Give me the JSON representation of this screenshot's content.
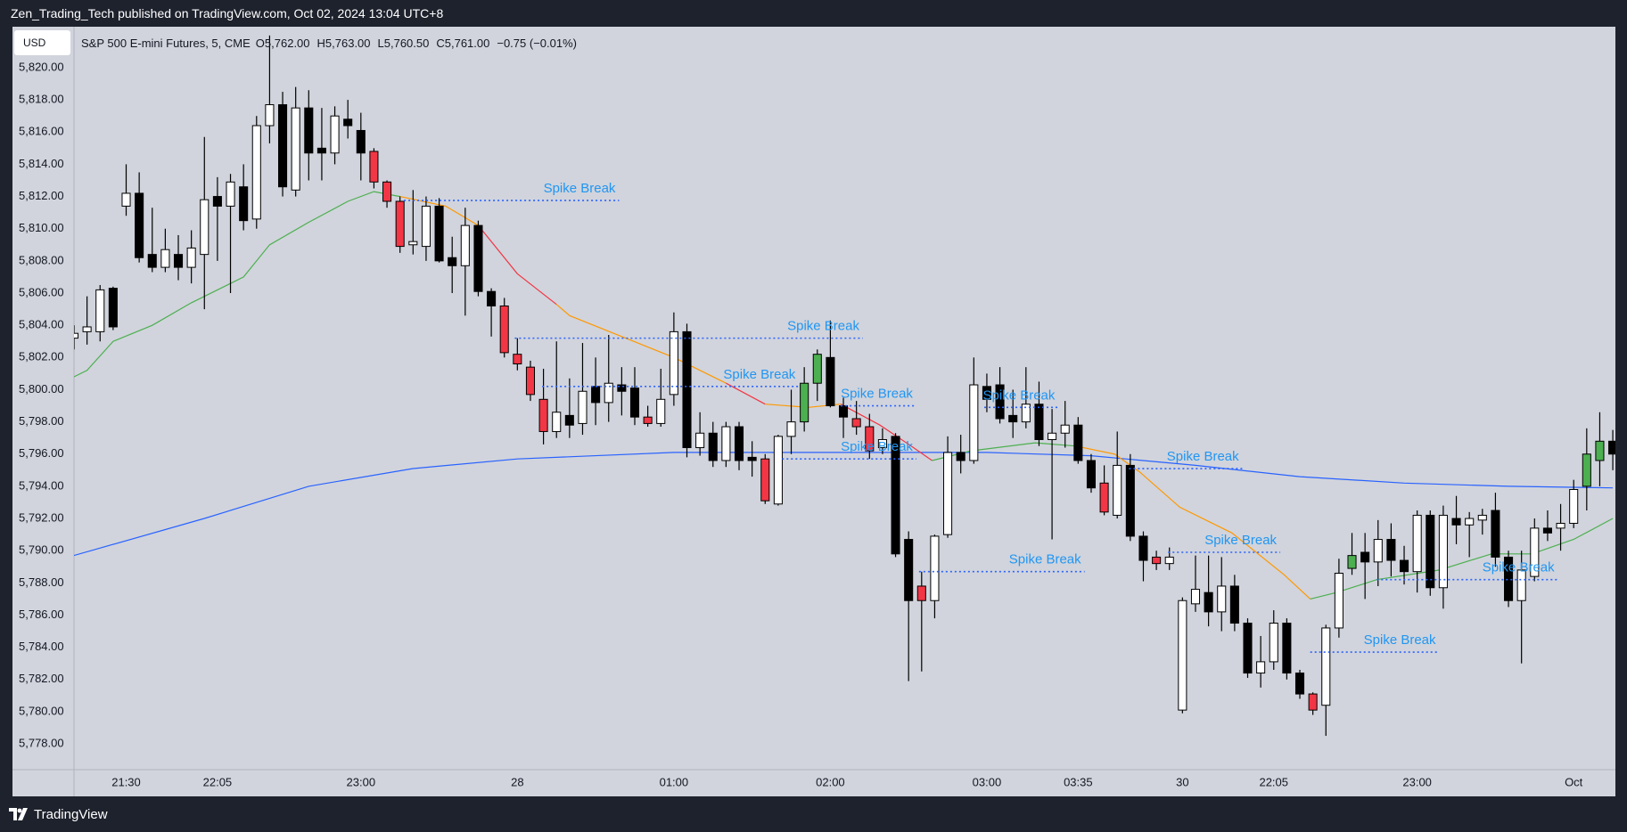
{
  "header": {
    "publisher": "Zen_Trading_Tech published on TradingView.com, Oct 02, 2024 13:04 UTC+8"
  },
  "footer": {
    "brand": "TradingView"
  },
  "chart_data": {
    "type": "candlestick",
    "currency": "USD",
    "symbol": "S&P 500 E-mini Futures, 5, CME",
    "ohlc_legend": [
      {
        "label": "O",
        "text": "5,762.00"
      },
      {
        "label": "H",
        "text": "5,763.00"
      },
      {
        "label": "L",
        "text": "5,760.50"
      },
      {
        "label": "C",
        "text": "5,761.00"
      },
      {
        "label": "",
        "text": "−0.75 (−0.01%)"
      }
    ],
    "categories": [
      null,
      null,
      null,
      null,
      "21:30",
      null,
      null,
      null,
      null,
      null,
      null,
      "22:05",
      null,
      null,
      null,
      null,
      null,
      null,
      null,
      null,
      null,
      null,
      "23:00",
      null,
      null,
      null,
      null,
      null,
      null,
      null,
      null,
      null,
      null,
      null,
      "28",
      null,
      null,
      null,
      null,
      null,
      null,
      null,
      null,
      null,
      null,
      null,
      "01:00",
      null,
      null,
      null,
      null,
      null,
      null,
      null,
      null,
      null,
      null,
      null,
      "02:00",
      null,
      null,
      null,
      null,
      null,
      null,
      null,
      null,
      null,
      null,
      null,
      "03:00",
      null,
      null,
      null,
      null,
      null,
      null,
      "03:35",
      null,
      null,
      null,
      null,
      null,
      null,
      null,
      "30",
      null,
      null,
      null,
      null,
      null,
      null,
      "22:05",
      null,
      null,
      null,
      null,
      null,
      null,
      null,
      null,
      null,
      null,
      "23:00",
      null,
      null,
      null,
      null,
      null,
      null,
      null,
      null,
      null,
      null,
      null,
      "Oct",
      null,
      null,
      null
    ],
    "open": [
      5803.5,
      5803.6,
      5803.6,
      5806.3,
      5811.4,
      5812.2,
      5808.4,
      5807.6,
      5808.4,
      5807.6,
      5808.4,
      5812,
      5811.4,
      5812.6,
      5810.6,
      5816.4,
      5817.7,
      5812.4,
      5817.5,
      5815,
      5814.7,
      5816.8,
      5816.1,
      5814.8,
      5812.9,
      5811.7,
      5809,
      5808.9,
      5811.4,
      5808.2,
      5807.7,
      5810.2,
      5806.1,
      5805.2,
      5802.2,
      5801.4,
      5799.4,
      5797.4,
      5798.4,
      5797.9,
      5800.2,
      5799.2,
      5800.3,
      5800.1,
      5798.3,
      5797.9,
      5799.7,
      5803.6,
      5796.4,
      5797.3,
      5795.6,
      5797.7,
      5795.8,
      5795.7,
      5792.9,
      5797.1,
      5798,
      5800.4,
      5802,
      5799,
      5798.2,
      5797.7,
      5796.4,
      5797.1,
      5790.7,
      5787.8,
      5786.9,
      5791,
      5796.1,
      5795.6,
      5800.2,
      5800.3,
      5798.4,
      5798,
      5799.1,
      5796.9,
      5797.3,
      5797.8,
      5795.6,
      5794.2,
      5792.2,
      5795.3,
      5790.9,
      5789.6,
      5789.2,
      5780.1,
      5786.7,
      5787.4,
      5786.2,
      5787.8,
      5785.5,
      5782.4,
      5783.1,
      5785.5,
      5782.4,
      5781.1,
      5780.4,
      5785.2,
      5788.9,
      5789.9,
      5789.3,
      5790.7,
      5789.4,
      5788.7,
      5792.2,
      5787.7,
      5792,
      5791.6,
      5791.9,
      5792.5,
      5789.6,
      5786.9,
      5788.4,
      5791.4,
      5791.4,
      5791.7,
      5794,
      5795.6,
      5796.8
    ],
    "high": [
      5804,
      5805.8,
      5806.5,
      5806.4,
      5814,
      5813.5,
      5811.3,
      5810,
      5809.6,
      5809.9,
      5815.7,
      5813.2,
      5813.4,
      5814,
      5817,
      5822,
      5818.5,
      5818.8,
      5818.6,
      5817.5,
      5817.6,
      5818,
      5817.2,
      5815,
      5813,
      5812,
      5812.4,
      5812,
      5811.9,
      5809.5,
      5811.3,
      5810.5,
      5806.3,
      5805.7,
      5803.2,
      5801.8,
      5801.3,
      5803,
      5800.7,
      5802.9,
      5802,
      5803.4,
      5801.4,
      5801.4,
      5799,
      5801.3,
      5804.8,
      5804.1,
      5798.6,
      5798,
      5798,
      5798,
      5796.8,
      5796,
      5797.2,
      5800,
      5801.4,
      5802.5,
      5804.3,
      5799.5,
      5799.3,
      5798.5,
      5797.6,
      5797.3,
      5791.2,
      5788.7,
      5791,
      5797.1,
      5797.2,
      5802,
      5801,
      5801.4,
      5800,
      5801.4,
      5800.5,
      5798.8,
      5799.3,
      5798.3,
      5796,
      5795.3,
      5797.4,
      5796,
      5791.2,
      5790,
      5790.2,
      5787.1,
      5789.7,
      5789.7,
      5789.6,
      5788.5,
      5785.8,
      5784.7,
      5786.3,
      5785.8,
      5782.6,
      5781.2,
      5785.4,
      5789.5,
      5791.1,
      5791.1,
      5791.9,
      5791.7,
      5790.3,
      5792.5,
      5792.5,
      5792.8,
      5793.4,
      5792.4,
      5792.6,
      5793.6,
      5790,
      5790,
      5792,
      5792.5,
      5792.9,
      5794.4,
      5797.6,
      5798.6,
      5797.5
    ],
    "low": [
      5802.5,
      5802.8,
      5803,
      5803.7,
      5810.8,
      5807.9,
      5807.3,
      5807.3,
      5806.8,
      5806.6,
      5805,
      5808,
      5806,
      5809.9,
      5810,
      5815.3,
      5812,
      5812,
      5813,
      5813,
      5814,
      5815.6,
      5813,
      5812.5,
      5811.3,
      5808.5,
      5808.4,
      5808,
      5807.9,
      5806,
      5804.6,
      5805.8,
      5803.3,
      5802,
      5801.2,
      5799.3,
      5796.6,
      5797,
      5797,
      5797.2,
      5797.8,
      5798,
      5798.4,
      5797.8,
      5797.7,
      5797.7,
      5799,
      5795.8,
      5795.9,
      5795.2,
      5795.2,
      5795,
      5794.6,
      5792.9,
      5792.8,
      5796,
      5797.4,
      5799.3,
      5798.9,
      5797,
      5797.2,
      5795.7,
      5796,
      5789.6,
      5781.9,
      5782.5,
      5785.8,
      5790.8,
      5794.8,
      5795.4,
      5798.6,
      5797.9,
      5797,
      5797.6,
      5796.5,
      5790.7,
      5796.4,
      5795.4,
      5793.6,
      5792.2,
      5792,
      5790.6,
      5788.1,
      5788.8,
      5788.8,
      5779.9,
      5786.2,
      5785.3,
      5785,
      5785,
      5782.1,
      5781.5,
      5782.6,
      5782,
      5780.8,
      5779.8,
      5778.5,
      5784.6,
      5788.5,
      5787,
      5787.8,
      5788.4,
      5787.9,
      5787.4,
      5787.2,
      5786.4,
      5790.4,
      5789.6,
      5791,
      5789,
      5786.5,
      5783,
      5788.1,
      5790.6,
      5790,
      5791.4,
      5792.5,
      5794,
      5795
    ],
    "close": [
      5803.2,
      5803.9,
      5806.2,
      5803.9,
      5812.2,
      5808.2,
      5807.6,
      5808.7,
      5807.6,
      5808.8,
      5811.8,
      5811.4,
      5812.9,
      5810.5,
      5816.4,
      5817.7,
      5812.6,
      5817.5,
      5814.7,
      5814.7,
      5817,
      5816.4,
      5814.7,
      5812.9,
      5811.7,
      5808.9,
      5809.2,
      5811.4,
      5808,
      5807.7,
      5810.2,
      5806.1,
      5805.2,
      5802.3,
      5801.6,
      5799.7,
      5797.4,
      5798.6,
      5797.8,
      5799.9,
      5799.2,
      5800.4,
      5799.9,
      5798.3,
      5797.9,
      5799.4,
      5803.6,
      5796.4,
      5797.3,
      5795.6,
      5797.7,
      5795.6,
      5795.6,
      5793.1,
      5797.1,
      5798,
      5800.4,
      5802.2,
      5799,
      5798.3,
      5797.7,
      5796.2,
      5796.9,
      5789.8,
      5786.9,
      5786.9,
      5790.9,
      5796.1,
      5795.6,
      5800.3,
      5799.4,
      5798.2,
      5798,
      5799.1,
      5796.9,
      5797.3,
      5797.8,
      5795.6,
      5793.9,
      5792.4,
      5795.3,
      5790.9,
      5789.4,
      5789.2,
      5789.6,
      5786.9,
      5787.6,
      5786.2,
      5787.8,
      5785.5,
      5782.4,
      5783.1,
      5785.5,
      5782.4,
      5781.1,
      5780.1,
      5785.2,
      5788.6,
      5789.7,
      5789.3,
      5790.7,
      5789.4,
      5788.7,
      5792.2,
      5787.7,
      5792.2,
      5791.6,
      5792,
      5792.2,
      5789.6,
      5786.9,
      5788.8,
      5791.4,
      5791.1,
      5791.7,
      5793.8,
      5796,
      5796.8,
      5796
    ],
    "colors": [
      "#ffffff",
      "#ffffff",
      "#ffffff",
      "#000000",
      "#ffffff",
      "#000000",
      "#000000",
      "#ffffff",
      "#000000",
      "#ffffff",
      "#ffffff",
      "#000000",
      "#ffffff",
      "#000000",
      "#ffffff",
      "#ffffff",
      "#000000",
      "#ffffff",
      "#000000",
      "#000000",
      "#ffffff",
      "#000000",
      "#000000",
      "#f23645",
      "#f23645",
      "#f23645",
      "#ffffff",
      "#ffffff",
      "#000000",
      "#000000",
      "#ffffff",
      "#000000",
      "#000000",
      "#f23645",
      "#f23645",
      "#f23645",
      "#f23645",
      "#ffffff",
      "#000000",
      "#ffffff",
      "#000000",
      "#ffffff",
      "#000000",
      "#000000",
      "#f23645",
      "#ffffff",
      "#ffffff",
      "#000000",
      "#ffffff",
      "#000000",
      "#ffffff",
      "#000000",
      "#000000",
      "#f23645",
      "#ffffff",
      "#ffffff",
      "#4caf50",
      "#4caf50",
      "#000000",
      "#000000",
      "#f23645",
      "#f23645",
      "#ffffff",
      "#000000",
      "#000000",
      "#f23645",
      "#ffffff",
      "#ffffff",
      "#000000",
      "#ffffff",
      "#000000",
      "#000000",
      "#000000",
      "#ffffff",
      "#000000",
      "#ffffff",
      "#ffffff",
      "#000000",
      "#000000",
      "#f23645",
      "#ffffff",
      "#000000",
      "#000000",
      "#f23645",
      "#ffffff",
      "#ffffff",
      "#ffffff",
      "#000000",
      "#ffffff",
      "#000000",
      "#000000",
      "#ffffff",
      "#ffffff",
      "#000000",
      "#000000",
      "#f23645",
      "#ffffff",
      "#ffffff",
      "#4caf50",
      "#000000",
      "#ffffff",
      "#000000",
      "#000000",
      "#ffffff",
      "#000000",
      "#ffffff",
      "#000000",
      "#ffffff",
      "#ffffff",
      "#000000",
      "#000000",
      "#ffffff",
      "#ffffff",
      "#000000",
      "#ffffff",
      "#ffffff",
      "#4caf50",
      "#4caf50",
      "#000000"
    ],
    "xlim": [
      0,
      118.2
    ],
    "ylim": [
      5776.4,
      5822.4
    ],
    "yticks": [
      {
        "value": 5778,
        "label": "5,778.00"
      },
      {
        "value": 5780,
        "label": "5,780.00"
      },
      {
        "value": 5782,
        "label": "5,782.00"
      },
      {
        "value": 5784,
        "label": "5,784.00"
      },
      {
        "value": 5786,
        "label": "5,786.00"
      },
      {
        "value": 5788,
        "label": "5,788.00"
      },
      {
        "value": 5790,
        "label": "5,790.00"
      },
      {
        "value": 5792,
        "label": "5,792.00"
      },
      {
        "value": 5794,
        "label": "5,794.00"
      },
      {
        "value": 5796,
        "label": "5,796.00"
      },
      {
        "value": 5798,
        "label": "5,798.00"
      },
      {
        "value": 5800,
        "label": "5,800.00"
      },
      {
        "value": 5802,
        "label": "5,802.00"
      },
      {
        "value": 5804,
        "label": "5,804.00"
      },
      {
        "value": 5806,
        "label": "5,806.00"
      },
      {
        "value": 5808,
        "label": "5,808.00"
      },
      {
        "value": 5810,
        "label": "5,810.00"
      },
      {
        "value": 5812,
        "label": "5,812.00"
      },
      {
        "value": 5814,
        "label": "5,814.00"
      },
      {
        "value": 5816,
        "label": "5,816.00"
      },
      {
        "value": 5818,
        "label": "5,818.00"
      },
      {
        "value": 5820,
        "label": "5,820.00"
      }
    ],
    "grid": false,
    "lines": [
      {
        "color": "#2962ff",
        "x": [
          0,
          10,
          18,
          26,
          34,
          46,
          58,
          70,
          78,
          86,
          94,
          102,
          110,
          118
        ],
        "values": [
          5789.7,
          5792,
          5794,
          5795.1,
          5795.7,
          5796.1,
          5796.1,
          5796.1,
          5795.9,
          5795.3,
          5794.6,
          5794.2,
          5794,
          5793.9
        ]
      },
      {
        "color": "#4caf50",
        "x": [
          0,
          1,
          3,
          6,
          9,
          13,
          15,
          18,
          21,
          23,
          25
        ],
        "values": [
          5800.8,
          5801.2,
          5803,
          5804,
          5805.4,
          5807,
          5809,
          5810.4,
          5811.7,
          5812.3,
          5812
        ]
      },
      {
        "color": "#ff9800",
        "x": [
          25,
          28.5,
          31
        ],
        "values": [
          5812,
          5811.4,
          5810.2
        ]
      },
      {
        "color": "#f23645",
        "x": [
          31,
          34,
          37
        ],
        "values": [
          5810.2,
          5807.2,
          5805.3
        ]
      },
      {
        "color": "#ff9800",
        "x": [
          37,
          38,
          42,
          46,
          50
        ],
        "values": [
          5805.3,
          5804.6,
          5803.3,
          5802,
          5800.4
        ]
      },
      {
        "color": "#f23645",
        "x": [
          50,
          53
        ],
        "values": [
          5800.4,
          5799.1
        ]
      },
      {
        "color": "#ff9800",
        "x": [
          53,
          56.3,
          58.8
        ],
        "values": [
          5799.1,
          5798.9,
          5799.1
        ]
      },
      {
        "color": "#f23645",
        "x": [
          58.8,
          61.8,
          64.2,
          65.8
        ],
        "values": [
          5799.1,
          5797.8,
          5796.5,
          5795.6
        ]
      },
      {
        "color": "#4caf50",
        "x": [
          65.8,
          68.8,
          73.7,
          76.8
        ],
        "values": [
          5795.6,
          5796.2,
          5796.7,
          5796.5
        ]
      },
      {
        "color": "#ff9800",
        "x": [
          76.8,
          79.8,
          81.7,
          84.8,
          88.8,
          92.8,
          94.8
        ],
        "values": [
          5796.5,
          5796,
          5794.9,
          5792.7,
          5791.1,
          5788.5,
          5787
        ]
      },
      {
        "color": "#4caf50",
        "x": [
          94.8,
          96.8,
          99.9,
          104.7,
          108.7,
          111.8,
          115,
          118
        ],
        "values": [
          5787,
          5787.4,
          5788.2,
          5788.8,
          5789.8,
          5789.8,
          5790.7,
          5792
        ]
      }
    ],
    "annotation_color": "#2962ff",
    "annotations": [
      {
        "text": "Spike Break",
        "value": 5811.75,
        "from": 25.3,
        "to": 41.8
      },
      {
        "text": "Spike Break",
        "value": 5803.2,
        "from": 33.8,
        "to": 60.5
      },
      {
        "text": "Spike Break",
        "value": 5800.2,
        "from": 35.9,
        "to": 55.6
      },
      {
        "text": "Spike Break",
        "value": 5799,
        "from": 58.8,
        "to": 64.6
      },
      {
        "text": "Spike Break",
        "value": 5798.9,
        "from": 69.8,
        "to": 75.5
      },
      {
        "text": "Spike Break",
        "value": 5795.7,
        "from": 54.3,
        "to": 64.6
      },
      {
        "text": "Spike Break",
        "value": 5795.1,
        "from": 80.9,
        "to": 89.6
      },
      {
        "text": "Spike Break",
        "value": 5788.7,
        "from": 64.8,
        "to": 77.5
      },
      {
        "text": "Spike Break",
        "value": 5789.9,
        "from": 83.9,
        "to": 92.5
      },
      {
        "text": "Spike Break",
        "value": 5783.7,
        "from": 94.8,
        "to": 104.7
      },
      {
        "text": "Spike Break",
        "value": 5788.2,
        "from": 99.9,
        "to": 113.8
      }
    ]
  }
}
